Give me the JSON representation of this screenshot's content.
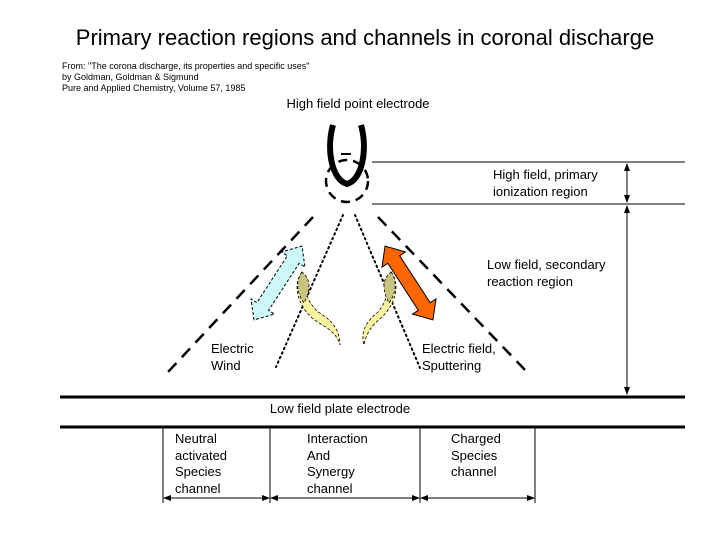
{
  "title": "Primary reaction regions and channels in coronal discharge",
  "source": [
    "From: \"The corona discharge, its properties and specific uses\"",
    "by Goldman, Goldman & Sigmund",
    "Pure and Applied Chemistry, Volume 57, 1985"
  ],
  "labels": {
    "point_electrode": "High field point electrode",
    "primary_region_1": "High field, primary",
    "primary_region_2": "ionization region",
    "secondary_region_1": "Low field, secondary",
    "secondary_region_2": "reaction region",
    "electric_wind_1": "Electric",
    "electric_wind_2": "Wind",
    "sputtering_1": "Electric field,",
    "sputtering_2": "Sputtering",
    "plate_electrode": "Low field plate electrode"
  },
  "channels": [
    {
      "lines": [
        "Neutral",
        "activated",
        "Species",
        "channel"
      ]
    },
    {
      "lines": [
        "Interaction",
        "And",
        "Synergy",
        "channel"
      ]
    },
    {
      "lines": [
        "Charged",
        "Species",
        "channel"
      ]
    }
  ],
  "colors": {
    "electric_wind_arrow": "#ccf8fa",
    "sputtering_arrow": "#ff6600",
    "leaf": "#c8c480",
    "tail": "#f8f4a0"
  }
}
